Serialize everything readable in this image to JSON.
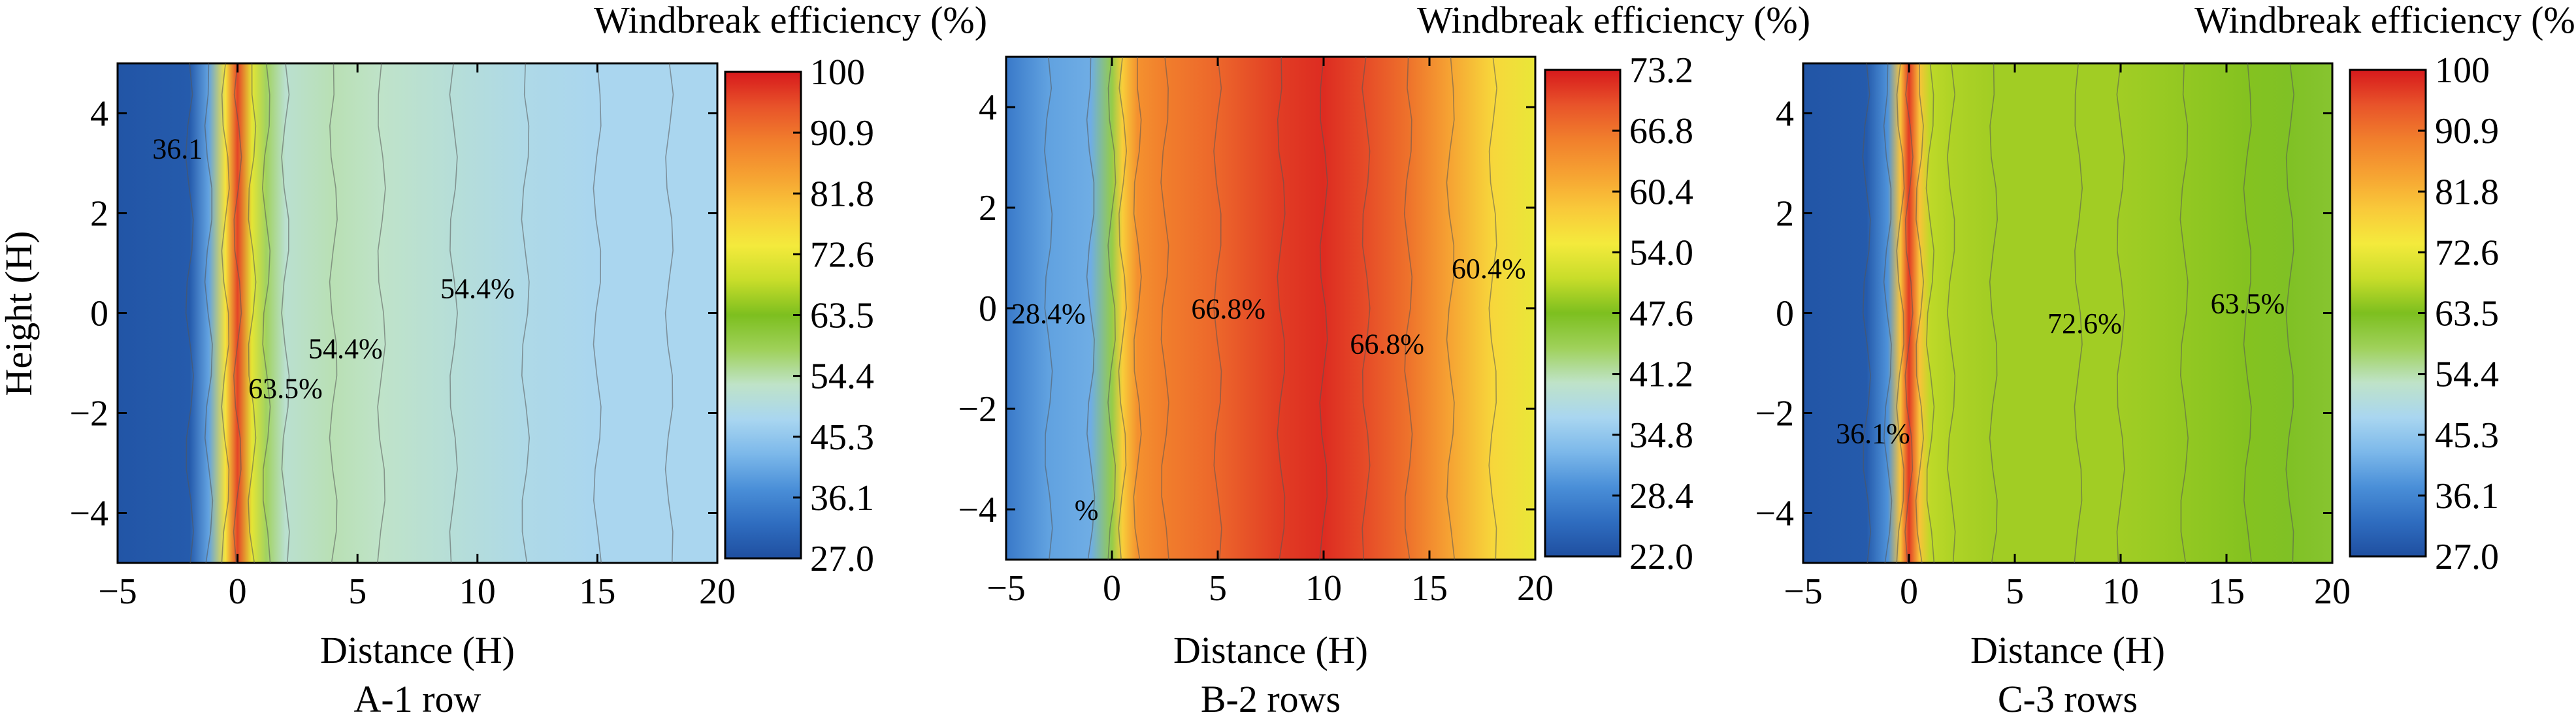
{
  "colorscale": [
    "#1f4fa0",
    "#2f6dc0",
    "#4a8fd8",
    "#7cb8ea",
    "#a9d6f0",
    "#bfe3c8",
    "#9fd15a",
    "#7dbf1f",
    "#c8dd2a",
    "#f4ea3c",
    "#f9c93a",
    "#f6a232",
    "#f17f2c",
    "#e8532a",
    "#d7191c"
  ],
  "chart_data": [
    {
      "type": "heatmap",
      "title": "A-1 row",
      "xlabel": "Distance (H)",
      "ylabel": "Height (H)",
      "xlim": [
        -5,
        20
      ],
      "ylim": [
        -5,
        5
      ],
      "x_ticks": [
        "−5",
        "0",
        "5",
        "10",
        "15",
        "20"
      ],
      "x_tick_values": [
        -5,
        0,
        5,
        10,
        15,
        20
      ],
      "y_ticks": [
        "4",
        "2",
        "0",
        "−2",
        "−4"
      ],
      "y_tick_values": [
        4,
        2,
        0,
        -2,
        -4
      ],
      "colorbar": {
        "title": "Windbreak efficiency (%)",
        "range": [
          27.0,
          100
        ],
        "ticks": [
          "100",
          "90.9",
          "81.8",
          "72.6",
          "63.5",
          "54.4",
          "45.3",
          "36.1",
          "27.0"
        ]
      },
      "profile_x": [
        -5,
        -2,
        -1.2,
        -0.5,
        0,
        0.6,
        1.2,
        2,
        4,
        6,
        9,
        12,
        15,
        18,
        20
      ],
      "profile_values": [
        28,
        29,
        40,
        75,
        96,
        72,
        58,
        52,
        54,
        53,
        51,
        49,
        48,
        48,
        48
      ],
      "contour_labels": [
        {
          "text": "36.1",
          "x": -2.5,
          "y": 3.1
        },
        {
          "text": "63.5%",
          "x": 2.0,
          "y": -1.7
        },
        {
          "text": "54.4%",
          "x": 4.5,
          "y": -0.9
        },
        {
          "text": "54.4%",
          "x": 10.0,
          "y": 0.3
        }
      ]
    },
    {
      "type": "heatmap",
      "title": "B-2 rows",
      "xlabel": "Distance (H)",
      "ylabel": "",
      "xlim": [
        -5,
        20
      ],
      "ylim": [
        -5,
        5
      ],
      "x_ticks": [
        "−5",
        "0",
        "5",
        "10",
        "15",
        "20"
      ],
      "x_tick_values": [
        -5,
        0,
        5,
        10,
        15,
        20
      ],
      "y_ticks": [
        "4",
        "2",
        "0",
        "−2",
        "−4"
      ],
      "y_tick_values": [
        4,
        2,
        0,
        -2,
        -4
      ],
      "colorbar": {
        "title": "Windbreak efficiency (%)",
        "range": [
          22.0,
          73.2
        ],
        "ticks": [
          "73.2",
          "66.8",
          "60.4",
          "54.0",
          "47.6",
          "41.2",
          "34.8",
          "28.4",
          "22.0"
        ]
      },
      "profile_x": [
        -5,
        -3,
        -1,
        0,
        0.5,
        1.2,
        2.5,
        5,
        8,
        10,
        12,
        14,
        16,
        18,
        20
      ],
      "profile_values": [
        27,
        31,
        32,
        45,
        58,
        64,
        66,
        68,
        71,
        72,
        70,
        67,
        62,
        57,
        54
      ],
      "contour_labels": [
        {
          "text": "28.4%",
          "x": -3.0,
          "y": -0.3
        },
        {
          "text": "66.8%",
          "x": 5.5,
          "y": -0.2
        },
        {
          "text": "66.8%",
          "x": 13.0,
          "y": -0.9
        },
        {
          "text": "60.4%",
          "x": 17.8,
          "y": 0.6
        },
        {
          "text": "%",
          "x": -1.2,
          "y": -4.2
        }
      ]
    },
    {
      "type": "heatmap",
      "title": "C-3 rows",
      "xlabel": "Distance (H)",
      "ylabel": "",
      "xlim": [
        -5,
        20
      ],
      "ylim": [
        -5,
        5
      ],
      "x_ticks": [
        "−5",
        "0",
        "5",
        "10",
        "15",
        "20"
      ],
      "x_tick_values": [
        -5,
        0,
        5,
        10,
        15,
        20
      ],
      "y_ticks": [
        "4",
        "2",
        "0",
        "−2",
        "−4"
      ],
      "y_tick_values": [
        4,
        2,
        0,
        -2,
        -4
      ],
      "colorbar": {
        "title": "Windbreak efficiency (%)",
        "range": [
          27.0,
          100
        ],
        "ticks": [
          "100",
          "90.9",
          "81.8",
          "72.6",
          "63.5",
          "54.4",
          "45.3",
          "36.1",
          "27.0"
        ]
      },
      "profile_x": [
        -5,
        -2,
        -1,
        -0.4,
        0,
        0.5,
        1.0,
        2,
        4,
        8,
        10,
        13,
        16,
        18,
        20
      ],
      "profile_values": [
        28,
        29,
        38,
        80,
        97,
        80,
        68,
        67,
        66,
        66,
        66,
        65,
        64,
        63,
        62
      ],
      "contour_labels": [
        {
          "text": "36.1%",
          "x": -1.7,
          "y": -2.6
        },
        {
          "text": "72.6%",
          "x": 8.3,
          "y": -0.4
        },
        {
          "text": "63.5%",
          "x": 16.0,
          "y": 0.0
        }
      ]
    }
  ]
}
